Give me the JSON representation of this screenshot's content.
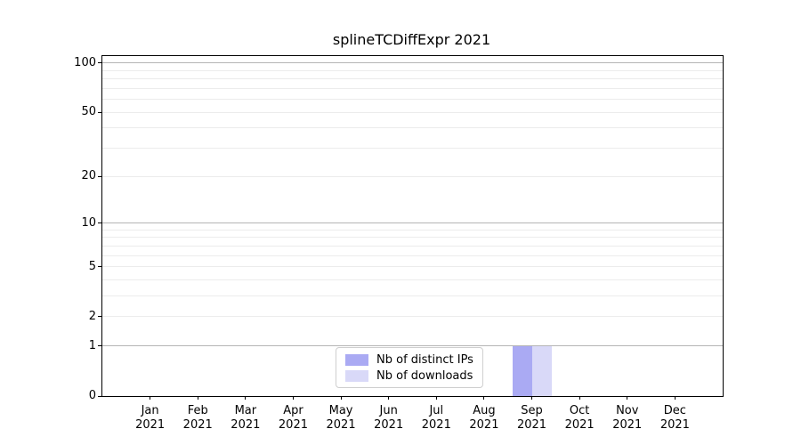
{
  "colors": {
    "background": "#ffffff",
    "axis": "#000000",
    "major_grid": "#b5b5b5",
    "minor_grid": "#ececec",
    "legend_border": "#cfcfcf",
    "bar_distinct_ips": "#aaaaf3",
    "bar_downloads": "#d9d9f8"
  },
  "chart_data": {
    "type": "bar",
    "title": "splineTCDiffExpr 2021",
    "categories": [
      "Jan",
      "Feb",
      "Mar",
      "Apr",
      "May",
      "Jun",
      "Jul",
      "Aug",
      "Sep",
      "Oct",
      "Nov",
      "Dec"
    ],
    "year": "2021",
    "series": [
      {
        "name": "Nb of distinct IPs",
        "color": "#aaaaf3",
        "values": [
          0,
          0,
          0,
          0,
          0,
          0,
          0,
          0,
          1,
          0,
          0,
          0
        ]
      },
      {
        "name": "Nb of downloads",
        "color": "#d9d9f8",
        "values": [
          0,
          0,
          0,
          0,
          0,
          0,
          0,
          0,
          1,
          0,
          0,
          0
        ]
      }
    ],
    "y_axis": {
      "scale": "log1p",
      "min": 0,
      "max": 110,
      "ticks": [
        0,
        1,
        2,
        5,
        10,
        20,
        50,
        100
      ],
      "major_gridlines": [
        1,
        10,
        100
      ],
      "minor_gridlines": [
        2,
        3,
        4,
        5,
        6,
        7,
        8,
        9,
        20,
        30,
        40,
        50,
        60,
        70,
        80,
        90
      ]
    },
    "legend_position": "lower center",
    "grid": true
  }
}
